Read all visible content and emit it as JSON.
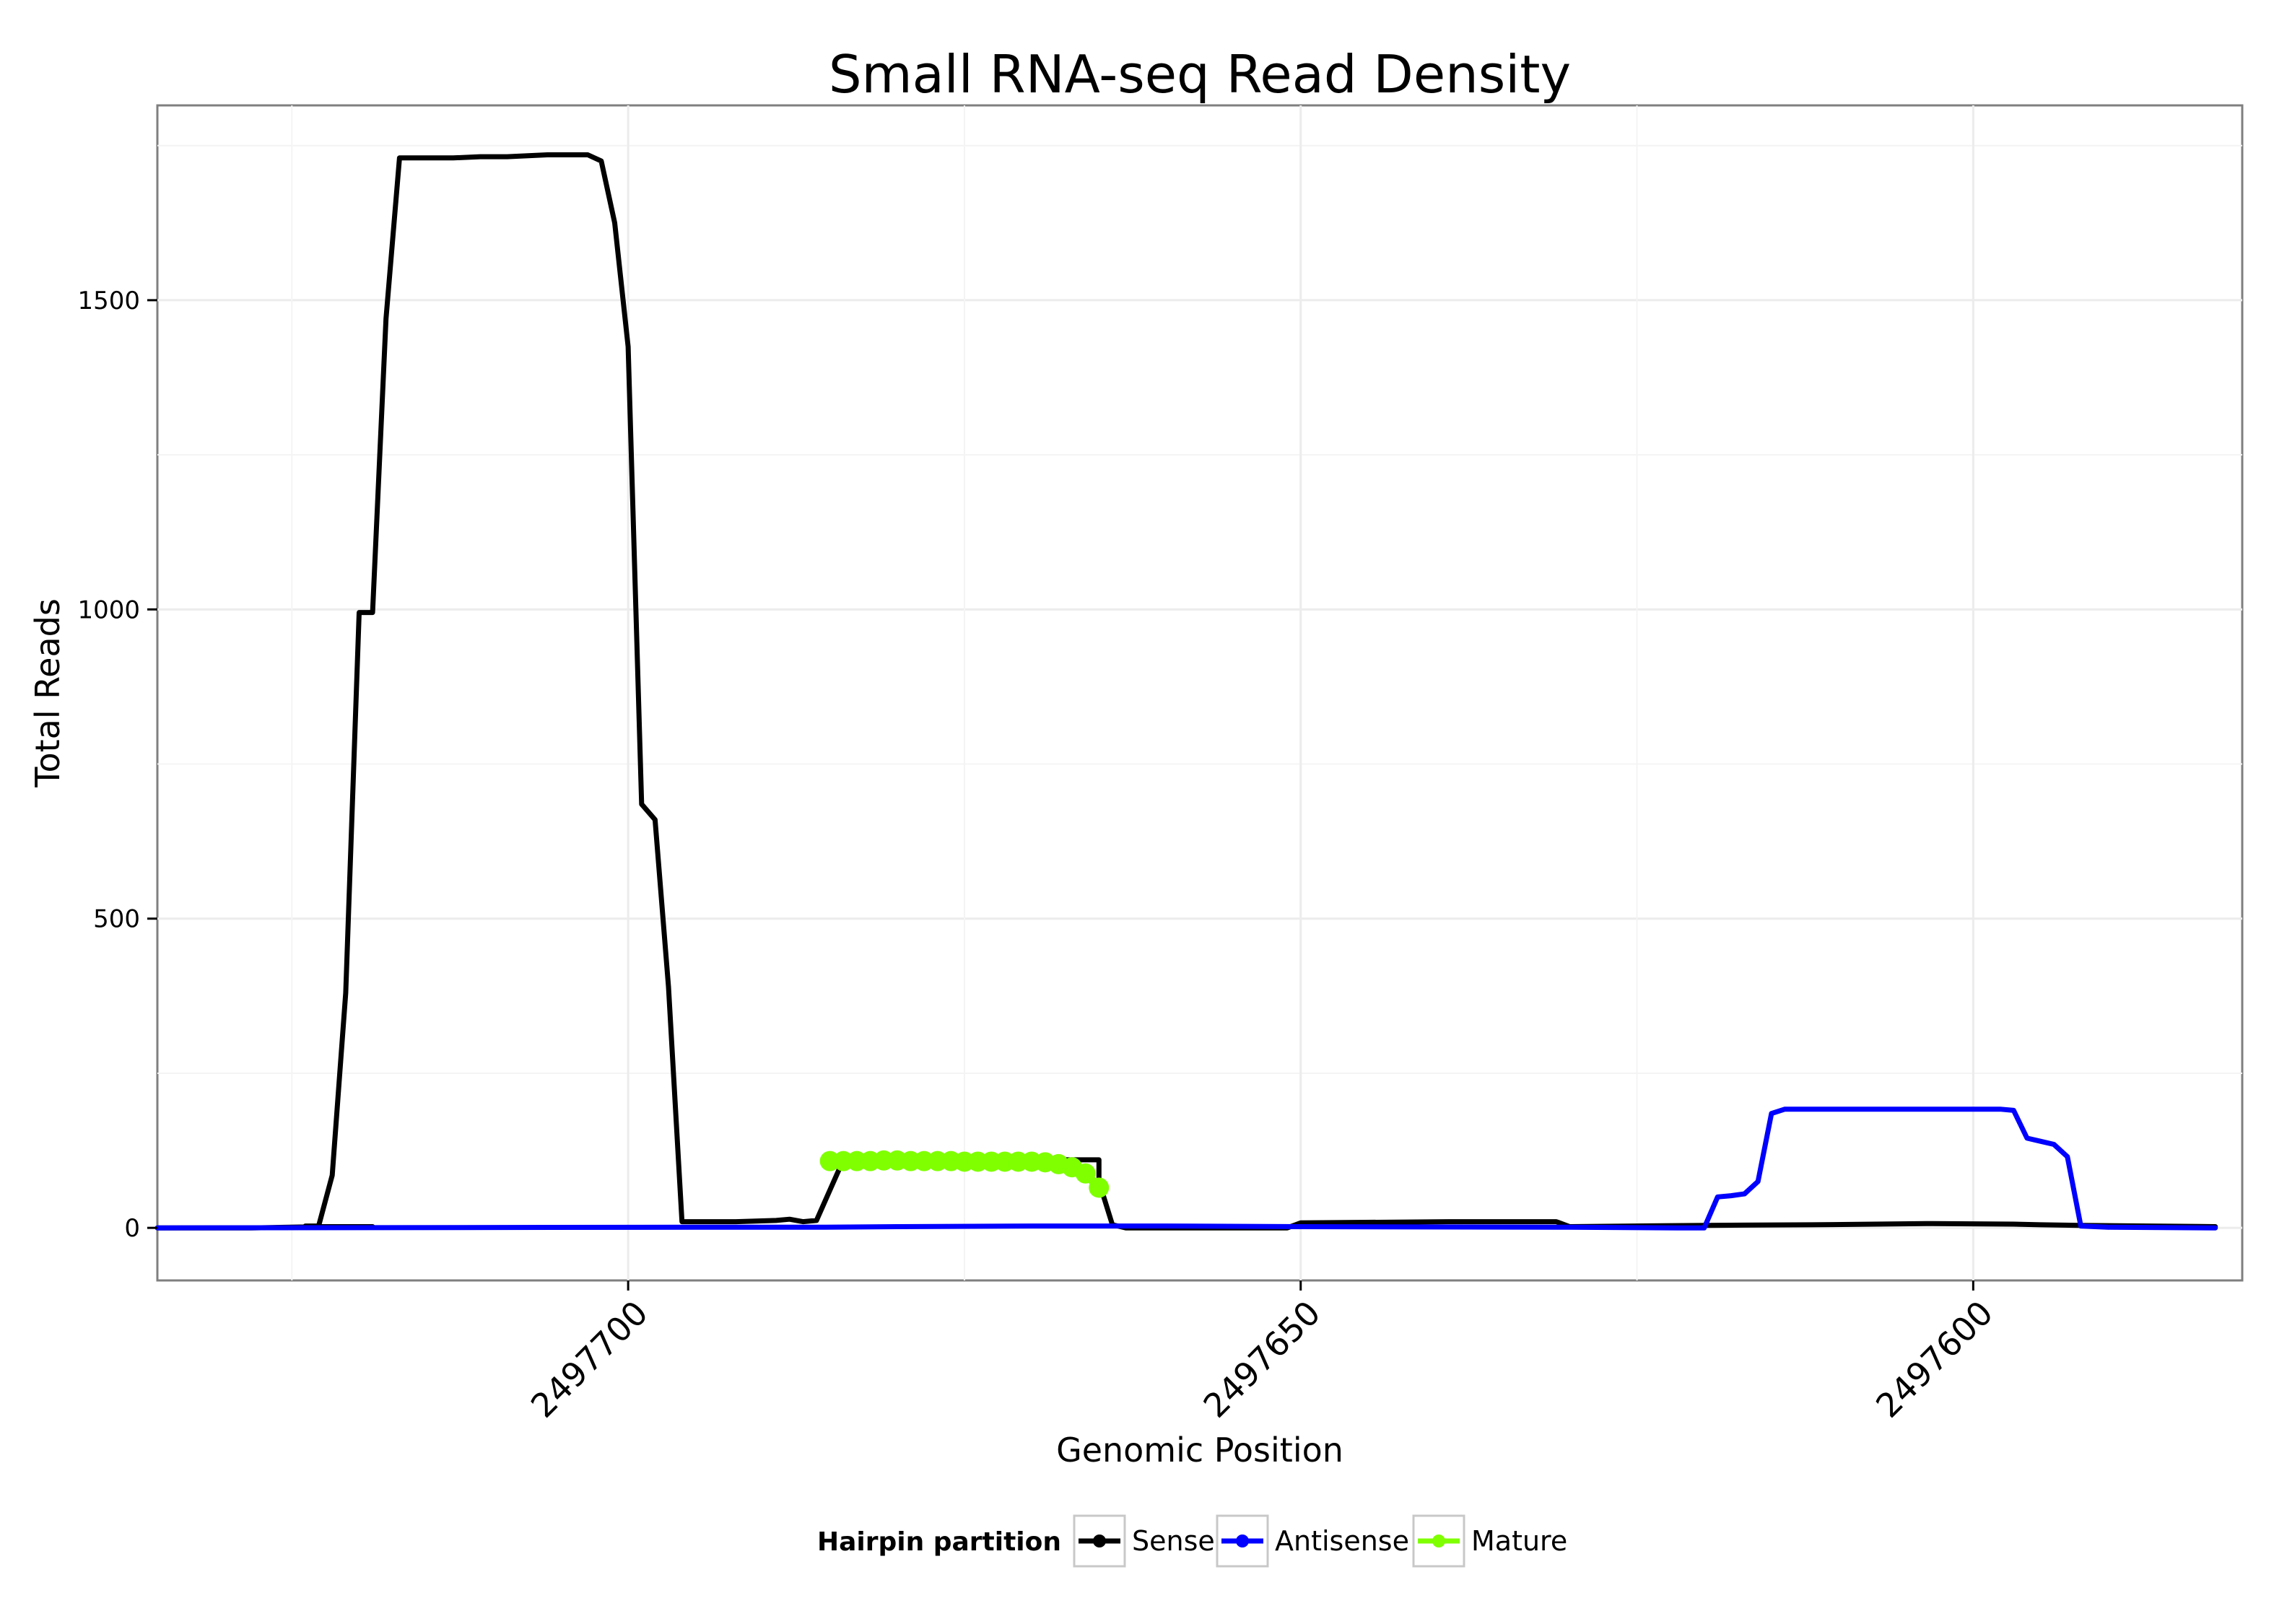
{
  "chart_data": {
    "type": "line",
    "title": "Small RNA-seq Read Density",
    "xlabel": "Genomic Position",
    "ylabel": "Total Reads",
    "xlim": [
      2497735,
      2497580
    ],
    "ylim": [
      -85,
      1815
    ],
    "x_reversed": true,
    "xticks": [
      2497700,
      2497650,
      2497600
    ],
    "xtick_labels": [
      "2497700",
      "2497650",
      "2497600"
    ],
    "yticks": [
      0,
      500,
      1000,
      1500
    ],
    "ytick_labels": [
      "0",
      "500",
      "1000",
      "1500"
    ],
    "grid": true,
    "legend": {
      "title": "Hairpin partition",
      "position": "bottom",
      "entries": [
        {
          "name": "Sense",
          "color": "#000000"
        },
        {
          "name": "Antisense",
          "color": "#0000ff"
        },
        {
          "name": "Mature",
          "color": "#7fff00"
        }
      ]
    },
    "series": [
      {
        "name": "Sense",
        "color": "#000000",
        "points": [
          [
            2497735,
            0
          ],
          [
            2497728,
            0
          ],
          [
            2497723,
            2
          ],
          [
            2497719,
            2
          ],
          [
            2497723,
            2
          ],
          [
            2497723,
            2
          ],
          [
            2497724,
            3
          ],
          [
            2497723,
            3
          ],
          [
            2497723,
            4
          ],
          [
            2497722,
            85
          ],
          [
            2497721,
            380
          ],
          [
            2497720,
            995
          ],
          [
            2497719,
            995
          ],
          [
            2497718,
            1470
          ],
          [
            2497717,
            1730
          ],
          [
            2497713,
            1730
          ],
          [
            2497711,
            1732
          ],
          [
            2497709,
            1732
          ],
          [
            2497706,
            1735
          ],
          [
            2497703,
            1735
          ],
          [
            2497702,
            1725
          ],
          [
            2497701,
            1625
          ],
          [
            2497700,
            1425
          ],
          [
            2497699,
            685
          ],
          [
            2497698,
            660
          ],
          [
            2497697,
            390
          ],
          [
            2497696,
            10
          ],
          [
            2497692,
            10
          ],
          [
            2497689,
            12
          ],
          [
            2497688,
            14
          ],
          [
            2497687,
            10
          ],
          [
            2497686,
            12
          ],
          [
            2497684,
            110
          ],
          [
            2497665,
            110
          ],
          [
            2497665,
            75
          ],
          [
            2497664,
            5
          ],
          [
            2497663,
            0
          ],
          [
            2497651,
            0
          ],
          [
            2497650,
            8
          ],
          [
            2497639,
            10
          ],
          [
            2497631,
            10
          ],
          [
            2497630,
            2
          ],
          [
            2497620,
            4
          ],
          [
            2497612,
            5
          ],
          [
            2497603,
            7
          ],
          [
            2497597,
            6
          ],
          [
            2497595,
            5
          ],
          [
            2497592,
            4
          ],
          [
            2497582,
            2
          ]
        ]
      },
      {
        "name": "Antisense",
        "color": "#0000ff",
        "points": [
          [
            2497735,
            0
          ],
          [
            2497695,
            1
          ],
          [
            2497686,
            1
          ],
          [
            2497680,
            2
          ],
          [
            2497670,
            3
          ],
          [
            2497660,
            3
          ],
          [
            2497650,
            2
          ],
          [
            2497630,
            1
          ],
          [
            2497622,
            0
          ],
          [
            2497620,
            0
          ],
          [
            2497619,
            50
          ],
          [
            2497618,
            52
          ],
          [
            2497617,
            55
          ],
          [
            2497616,
            75
          ],
          [
            2497615,
            185
          ],
          [
            2497614,
            192
          ],
          [
            2497598,
            192
          ],
          [
            2497597,
            190
          ],
          [
            2497596,
            145
          ],
          [
            2497595,
            140
          ],
          [
            2497594,
            135
          ],
          [
            2497593,
            115
          ],
          [
            2497592,
            3
          ],
          [
            2497590,
            1
          ],
          [
            2497582,
            0
          ]
        ]
      },
      {
        "name": "Mature",
        "color": "#7fff00",
        "points": [
          [
            2497685,
            108
          ],
          [
            2497684,
            108
          ],
          [
            2497683,
            108
          ],
          [
            2497682,
            108
          ],
          [
            2497681,
            109
          ],
          [
            2497680,
            109
          ],
          [
            2497679,
            108
          ],
          [
            2497678,
            108
          ],
          [
            2497677,
            108
          ],
          [
            2497676,
            108
          ],
          [
            2497675,
            107
          ],
          [
            2497674,
            107
          ],
          [
            2497673,
            107
          ],
          [
            2497672,
            107
          ],
          [
            2497671,
            107
          ],
          [
            2497670,
            107
          ],
          [
            2497669,
            106
          ],
          [
            2497668,
            103
          ],
          [
            2497667,
            98
          ],
          [
            2497666,
            88
          ],
          [
            2497665,
            65
          ]
        ]
      }
    ]
  }
}
